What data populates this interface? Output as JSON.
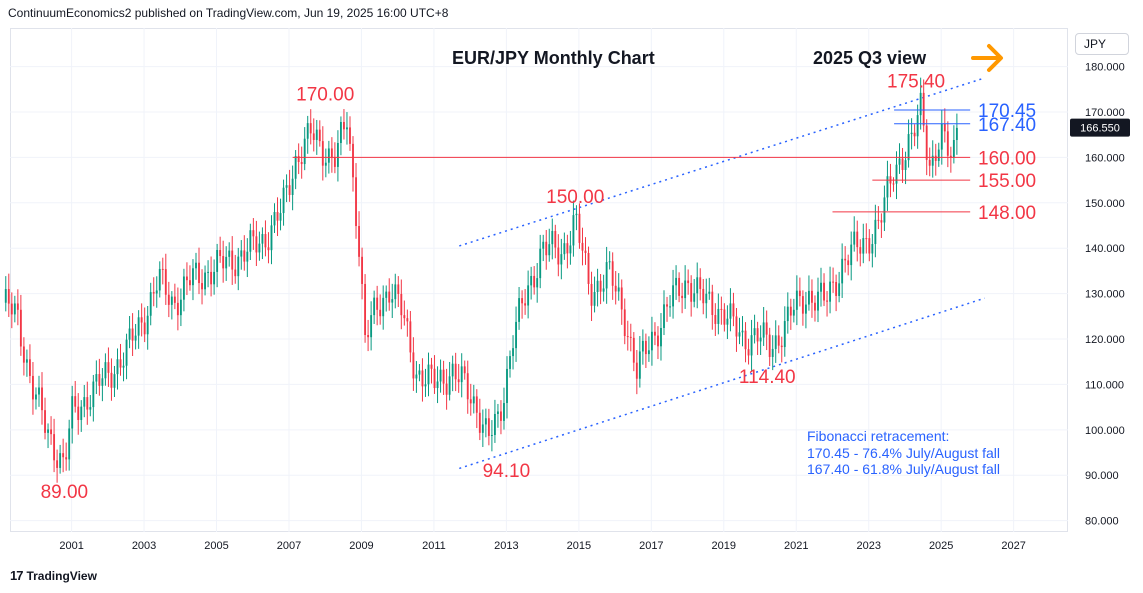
{
  "header": {
    "publisher": "ContinuumEconomics2 published on TradingView.com, Jun 19, 2025 16:00 UTC+8"
  },
  "footer": {
    "brand": "TradingView",
    "logo_icon": "tradingview-logo-icon"
  },
  "currency_label": "JPY",
  "chart_data": {
    "type": "candlestick",
    "title": "EUR/JPY Monthly Chart",
    "subtitle": "2025 Q3 view",
    "arrow_icon": "right-arrow-icon",
    "colors": {
      "up": "#089981",
      "down": "#f23645",
      "level_red": "#f23645",
      "level_blue": "#2962ff",
      "arrow": "#ff9800"
    },
    "x_axis": {
      "ticks": [
        "2001",
        "2003",
        "2005",
        "2007",
        "2009",
        "2011",
        "2013",
        "2015",
        "2017",
        "2019",
        "2021",
        "2023",
        "2025",
        "2027"
      ],
      "range": [
        1999.3,
        2028.5
      ]
    },
    "y_axis": {
      "ticks": [
        "80.000",
        "90.000",
        "100.000",
        "110.000",
        "120.000",
        "130.000",
        "140.000",
        "150.000",
        "160.000",
        "170.000",
        "180.000"
      ],
      "range": [
        77.5,
        188.5
      ],
      "position": "right"
    },
    "last_price": "166.550",
    "price_path": [
      [
        1999.1,
        128
      ],
      [
        1999.5,
        125
      ],
      [
        1999.9,
        110
      ],
      [
        2000.3,
        100
      ],
      [
        2000.8,
        92
      ],
      [
        2001.0,
        103
      ],
      [
        2001.5,
        108
      ],
      [
        2002.0,
        112
      ],
      [
        2002.5,
        117
      ],
      [
        2003.0,
        125
      ],
      [
        2003.4,
        133
      ],
      [
        2003.8,
        128
      ],
      [
        2004.3,
        133
      ],
      [
        2004.8,
        135
      ],
      [
        2005.3,
        137
      ],
      [
        2005.8,
        139
      ],
      [
        2006.3,
        142
      ],
      [
        2006.8,
        148
      ],
      [
        2007.2,
        160
      ],
      [
        2007.6,
        165
      ],
      [
        2007.9,
        162
      ],
      [
        2008.3,
        160
      ],
      [
        2008.6,
        168
      ],
      [
        2008.9,
        145
      ],
      [
        2009.1,
        120
      ],
      [
        2009.4,
        126
      ],
      [
        2009.8,
        132
      ],
      [
        2010.1,
        126
      ],
      [
        2010.5,
        113
      ],
      [
        2011.0,
        110
      ],
      [
        2011.5,
        113
      ],
      [
        2011.8,
        110
      ],
      [
        2012.2,
        105
      ],
      [
        2012.5,
        98
      ],
      [
        2012.8,
        102
      ],
      [
        2013.2,
        122
      ],
      [
        2013.6,
        130
      ],
      [
        2014.0,
        141
      ],
      [
        2014.5,
        138
      ],
      [
        2014.9,
        147
      ],
      [
        2015.3,
        130
      ],
      [
        2015.8,
        135
      ],
      [
        2016.3,
        124
      ],
      [
        2016.6,
        113
      ],
      [
        2016.9,
        118
      ],
      [
        2017.5,
        128
      ],
      [
        2018.0,
        133
      ],
      [
        2018.5,
        128
      ],
      [
        2019.0,
        126
      ],
      [
        2019.5,
        120
      ],
      [
        2019.9,
        121
      ],
      [
        2020.3,
        118
      ],
      [
        2020.9,
        126
      ],
      [
        2021.3,
        130
      ],
      [
        2021.8,
        128
      ],
      [
        2022.3,
        137
      ],
      [
        2022.8,
        141
      ],
      [
        2023.3,
        145
      ],
      [
        2023.7,
        158
      ],
      [
        2024.2,
        163
      ],
      [
        2024.45,
        172
      ],
      [
        2024.7,
        158
      ],
      [
        2025.0,
        164
      ],
      [
        2025.3,
        160
      ],
      [
        2025.45,
        166.5
      ]
    ],
    "channel": {
      "upper": {
        "from": [
          2011.7,
          140.5
        ],
        "to": [
          2026.2,
          177.5
        ]
      },
      "lower": {
        "from": [
          2011.7,
          91.5
        ],
        "to": [
          2026.2,
          129
        ]
      }
    },
    "levels": [
      {
        "label": "175.40",
        "value": 175.4,
        "color": "red",
        "line": false,
        "x_start": 2023.7
      },
      {
        "label": "170.45",
        "value": 170.45,
        "color": "blue",
        "line": true,
        "x_start": 2023.7
      },
      {
        "label": "167.40",
        "value": 167.4,
        "color": "blue",
        "line": true,
        "x_start": 2023.7
      },
      {
        "label": "160.00",
        "value": 160.0,
        "color": "red",
        "line": true,
        "x_start": 2007.1
      },
      {
        "label": "155.00",
        "value": 155.0,
        "color": "red",
        "line": true,
        "x_start": 2023.1
      },
      {
        "label": "148.00",
        "value": 148.0,
        "color": "red",
        "line": true,
        "x_start": 2022.0
      }
    ],
    "annotations": [
      {
        "text": "170.00",
        "x": 2008.0,
        "y": 172.5
      },
      {
        "text": "150.00",
        "x": 2014.9,
        "y": 150.0
      },
      {
        "text": "114.40",
        "x": 2020.2,
        "y": 110.3
      },
      {
        "text": "94.10",
        "x": 2013.0,
        "y": 89.6
      },
      {
        "text": "89.00",
        "x": 2000.8,
        "y": 85.0
      }
    ],
    "fibonacci_note": {
      "title": "Fibonacci retracement:",
      "lines": [
        "170.45 - 76.4% July/August fall",
        "167.40 - 61.8% July/August fall"
      ]
    }
  }
}
